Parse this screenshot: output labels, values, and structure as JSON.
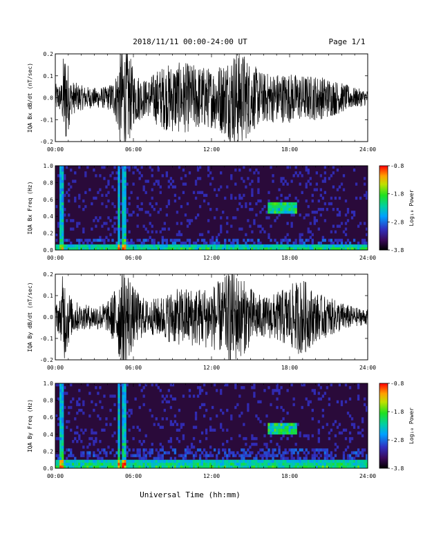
{
  "header": {
    "title": "2018/11/11   00:00-24:00 UT",
    "page": "Page 1/1"
  },
  "xlabel": "Universal Time (hh:mm)",
  "colors": {
    "trace": "#000000",
    "spectrogram_background": "#2a0a3a"
  },
  "chart_data": [
    {
      "type": "line",
      "series": [
        {
          "name": "IQA Bx dB/dt",
          "envelope_samples": [
            [
              0.0,
              0.055
            ],
            [
              0.5,
              0.06
            ],
            [
              0.6,
              0.16
            ],
            [
              0.8,
              0.2
            ],
            [
              1.2,
              0.07
            ],
            [
              2.0,
              0.05
            ],
            [
              3.0,
              0.04
            ],
            [
              4.0,
              0.045
            ],
            [
              4.6,
              0.08
            ],
            [
              5.0,
              0.2
            ],
            [
              5.6,
              0.2
            ],
            [
              6.0,
              0.11
            ],
            [
              7.0,
              0.07
            ],
            [
              8.0,
              0.12
            ],
            [
              9.0,
              0.14
            ],
            [
              10.0,
              0.14
            ],
            [
              11.0,
              0.13
            ],
            [
              12.0,
              0.12
            ],
            [
              13.0,
              0.15
            ],
            [
              13.5,
              0.18
            ],
            [
              14.0,
              0.2
            ],
            [
              14.5,
              0.18
            ],
            [
              15.0,
              0.14
            ],
            [
              16.0,
              0.1
            ],
            [
              17.0,
              0.1
            ],
            [
              18.0,
              0.1
            ],
            [
              19.0,
              0.09
            ],
            [
              20.0,
              0.09
            ],
            [
              21.0,
              0.08
            ],
            [
              22.0,
              0.06
            ],
            [
              23.0,
              0.04
            ],
            [
              24.0,
              0.03
            ]
          ]
        }
      ],
      "xlabel": "",
      "ylabel": "IQA Bx dB/dt (nT/sec)",
      "xlim": [
        0,
        24
      ],
      "ylim": [
        -0.2,
        0.2
      ],
      "xticks": [
        "00:00",
        "06:00",
        "12:00",
        "18:00",
        "24:00"
      ],
      "yticks": [
        "-0.2",
        "-0.1",
        "0.0",
        "0.1",
        "0.2"
      ]
    },
    {
      "type": "heatmap",
      "xlabel": "",
      "ylabel": "IQA Bx Freq (Hz)",
      "xlim": [
        0,
        24
      ],
      "ylim": [
        0.0,
        1.0
      ],
      "xticks": [
        "00:00",
        "06:00",
        "12:00",
        "18:00",
        "24:00"
      ],
      "yticks": [
        "0.0",
        "0.2",
        "0.4",
        "0.6",
        "0.8",
        "1.0"
      ],
      "colorbar": {
        "label": "Log₁₀ Power",
        "range": [
          -3.8,
          -0.8
        ],
        "ticks": [
          "-0.8",
          "-1.8",
          "-2.8",
          "-3.8"
        ]
      },
      "features": {
        "low_band_hz": 0.06,
        "impulses_ut_hours": [
          0.5,
          4.9,
          5.3
        ],
        "emission": {
          "t_start": 16.3,
          "t_end": 18.6,
          "f_center": 0.5,
          "f_halfwidth": 0.07
        }
      }
    },
    {
      "type": "line",
      "series": [
        {
          "name": "IQA By dB/dt",
          "envelope_samples": [
            [
              0.0,
              0.05
            ],
            [
              0.4,
              0.08
            ],
            [
              0.6,
              0.2
            ],
            [
              1.2,
              0.08
            ],
            [
              2.0,
              0.05
            ],
            [
              3.0,
              0.05
            ],
            [
              4.0,
              0.06
            ],
            [
              4.6,
              0.12
            ],
            [
              5.0,
              0.2
            ],
            [
              5.6,
              0.2
            ],
            [
              6.0,
              0.12
            ],
            [
              7.0,
              0.07
            ],
            [
              8.0,
              0.08
            ],
            [
              9.0,
              0.11
            ],
            [
              10.0,
              0.12
            ],
            [
              11.0,
              0.12
            ],
            [
              12.0,
              0.13
            ],
            [
              13.0,
              0.16
            ],
            [
              13.5,
              0.2
            ],
            [
              14.0,
              0.18
            ],
            [
              15.0,
              0.12
            ],
            [
              16.0,
              0.08
            ],
            [
              17.0,
              0.1
            ],
            [
              18.0,
              0.13
            ],
            [
              19.0,
              0.16
            ],
            [
              20.0,
              0.1
            ],
            [
              21.0,
              0.08
            ],
            [
              22.0,
              0.06
            ],
            [
              23.0,
              0.04
            ],
            [
              24.0,
              0.03
            ]
          ]
        }
      ],
      "xlabel": "",
      "ylabel": "IQA By dB/dt (nT/sec)",
      "xlim": [
        0,
        24
      ],
      "ylim": [
        -0.2,
        0.2
      ],
      "xticks": [
        "00:00",
        "06:00",
        "12:00",
        "18:00",
        "24:00"
      ],
      "yticks": [
        "-0.2",
        "-0.1",
        "0.0",
        "0.1",
        "0.2"
      ]
    },
    {
      "type": "heatmap",
      "xlabel": "",
      "ylabel": "IQA By Freq (Hz)",
      "xlim": [
        0,
        24
      ],
      "ylim": [
        0.0,
        1.0
      ],
      "xticks": [
        "00:00",
        "06:00",
        "12:00",
        "18:00",
        "24:00"
      ],
      "yticks": [
        "0.0",
        "0.2",
        "0.4",
        "0.6",
        "0.8",
        "1.0"
      ],
      "colorbar": {
        "label": "Log₁₀ Power",
        "range": [
          -3.8,
          -0.8
        ],
        "ticks": [
          "-0.8",
          "-1.8",
          "-2.8",
          "-3.8"
        ]
      },
      "features": {
        "low_band_hz": 0.1,
        "impulses_ut_hours": [
          0.5,
          4.9,
          5.3
        ],
        "emission": {
          "t_start": 16.3,
          "t_end": 18.6,
          "f_center": 0.48,
          "f_halfwidth": 0.07
        }
      }
    }
  ]
}
